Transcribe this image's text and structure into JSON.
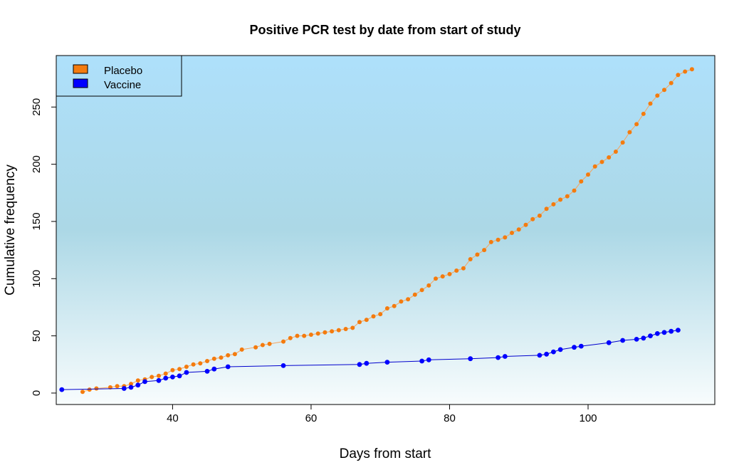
{
  "chart_data": {
    "type": "line",
    "title": "Positive PCR test by date from start of study",
    "xlabel": "Days from start",
    "ylabel": "Cumulative frequency",
    "xlim": [
      23.2,
      118.3
    ],
    "ylim": [
      -10,
      295
    ],
    "xticks": [
      40,
      60,
      80,
      100
    ],
    "yticks": [
      0,
      50,
      100,
      150,
      200,
      250
    ],
    "legend": {
      "position": "top-left"
    },
    "background_gradient": [
      "#aee0fb",
      "#acd8e6",
      "#f8fcfd"
    ],
    "series": [
      {
        "name": "Placebo",
        "color": "#f47b0e",
        "line_color": "#f4a460",
        "x": [
          27,
          28,
          29,
          31,
          32,
          33,
          34,
          35,
          36,
          37,
          38,
          39,
          40,
          41,
          42,
          43,
          44,
          45,
          46,
          47,
          48,
          49,
          50,
          52,
          53,
          54,
          56,
          57,
          58,
          59,
          60,
          61,
          62,
          63,
          64,
          65,
          66,
          67,
          68,
          69,
          70,
          71,
          72,
          73,
          74,
          75,
          76,
          77,
          78,
          79,
          80,
          81,
          82,
          83,
          84,
          85,
          86,
          87,
          88,
          89,
          90,
          91,
          92,
          93,
          94,
          95,
          96,
          97,
          98,
          99,
          100,
          101,
          102,
          103,
          104,
          105,
          106,
          107,
          108,
          109,
          110,
          111,
          112,
          113,
          114,
          115
        ],
        "y": [
          1,
          3,
          4,
          5,
          6,
          6,
          8,
          11,
          12,
          14,
          15,
          17,
          20,
          21,
          23,
          25,
          26,
          28,
          30,
          31,
          33,
          34,
          38,
          40,
          42,
          43,
          45,
          48,
          50,
          50,
          51,
          52,
          53,
          54,
          55,
          56,
          57,
          62,
          64,
          67,
          69,
          74,
          76,
          80,
          82,
          86,
          90,
          94,
          100,
          102,
          104,
          107,
          109,
          117,
          121,
          125,
          132,
          134,
          136,
          140,
          143,
          147,
          152,
          155,
          161,
          165,
          169,
          172,
          177,
          185,
          191,
          198,
          202,
          206,
          211,
          219,
          228,
          235,
          244,
          253,
          260,
          265,
          271,
          278,
          281,
          283
        ]
      },
      {
        "name": "Vaccine",
        "color": "#0000ff",
        "line_color": "#0000cd",
        "x": [
          24,
          33,
          34,
          35,
          36,
          38,
          39,
          40,
          41,
          42,
          45,
          46,
          48,
          56,
          67,
          68,
          71,
          76,
          77,
          83,
          87,
          88,
          93,
          94,
          95,
          96,
          98,
          99,
          103,
          105,
          107,
          108,
          109,
          110,
          111,
          112,
          113
        ],
        "y": [
          3,
          4,
          5,
          7,
          10,
          11,
          13,
          14,
          15,
          18,
          19,
          21,
          23,
          24,
          25,
          26,
          27,
          28,
          29,
          30,
          31,
          32,
          33,
          34,
          36,
          38,
          40,
          41,
          44,
          46,
          47,
          48,
          50,
          52,
          53,
          54,
          55
        ]
      }
    ]
  }
}
